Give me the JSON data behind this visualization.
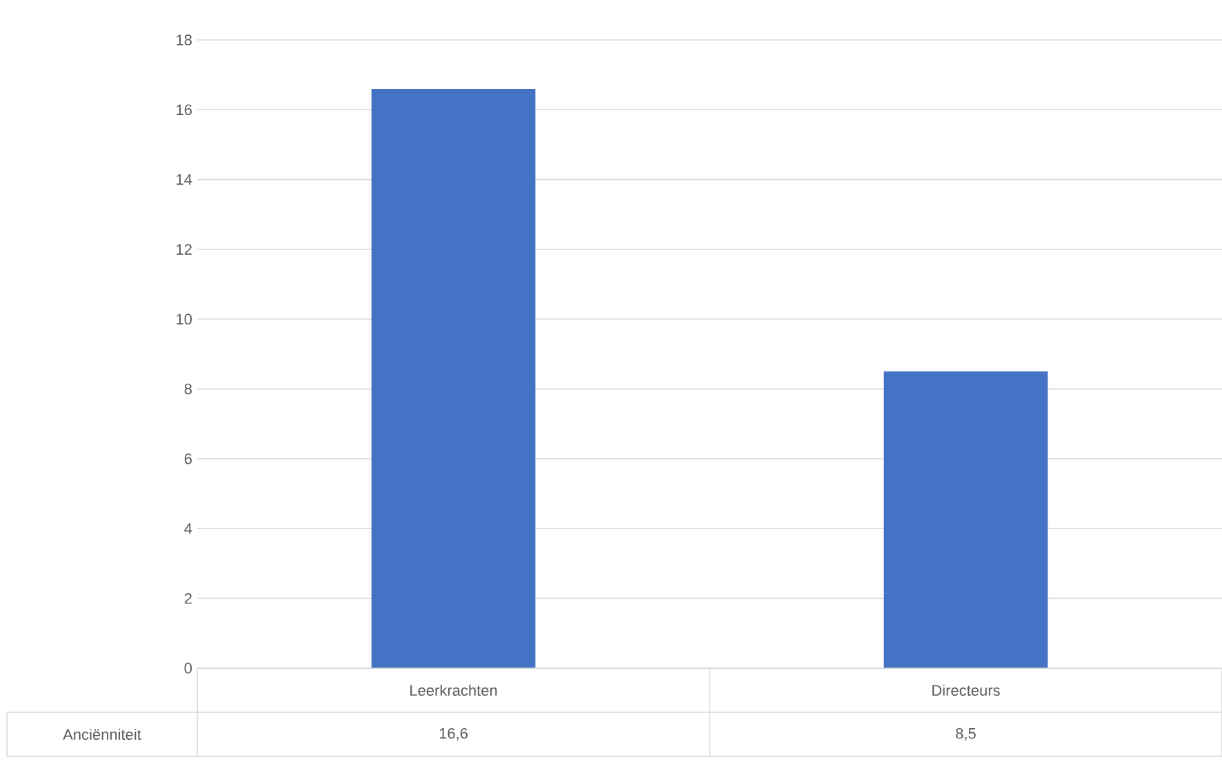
{
  "chart_data": {
    "type": "bar",
    "categories": [
      "Leerkrachten",
      "Directeurs"
    ],
    "series": [
      {
        "name": "Anciënniteit",
        "color": "#4472c4",
        "values": [
          16.6,
          8.5
        ],
        "value_labels": [
          "16,6",
          "8,5"
        ]
      }
    ],
    "ylim": [
      0,
      18
    ],
    "yticks": [
      0,
      2,
      4,
      6,
      8,
      10,
      12,
      14,
      16,
      18
    ],
    "grid": "y"
  }
}
